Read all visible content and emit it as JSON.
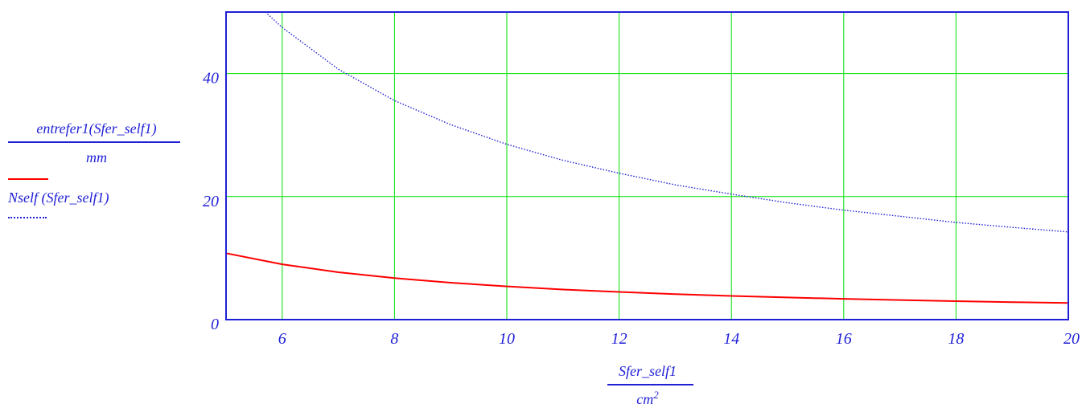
{
  "chart_data": {
    "type": "line",
    "xlabel_numerator": "Sfer_self1",
    "xlabel_denominator": "cm",
    "xlabel_denominator_exp": "2",
    "ylabel_numerator": "entrefer1(Sfer_self1)",
    "ylabel_denominator": "mm",
    "xlim": [
      5,
      20
    ],
    "ylim": [
      0,
      50
    ],
    "x_ticks": [
      6,
      8,
      10,
      12,
      14,
      16,
      18,
      20
    ],
    "x_tick_labels": [
      "6",
      "8",
      "10",
      "12",
      "14",
      "16",
      "18",
      "20"
    ],
    "y_ticks": [
      0,
      20,
      40
    ],
    "y_tick_labels": [
      "0",
      "20",
      "40"
    ],
    "x_axis_start_label": "",
    "grid": true,
    "legend_placement": "left",
    "series": [
      {
        "name": "entrefer1(Sfer_self1)",
        "style": "solid",
        "color": "#ff0000",
        "x": [
          5,
          6,
          7,
          8,
          9,
          10,
          11,
          12,
          13,
          14,
          15,
          16,
          17,
          18,
          19,
          20
        ],
        "y": [
          10.8,
          9.0,
          7.7,
          6.75,
          6.0,
          5.4,
          4.9,
          4.5,
          4.15,
          3.85,
          3.6,
          3.38,
          3.18,
          3.0,
          2.84,
          2.7
        ]
      },
      {
        "name": "Nself (Sfer_self1)",
        "style": "dotted",
        "color": "#1f1fd6",
        "x": [
          5.7,
          6,
          7,
          8,
          9,
          10,
          11,
          12,
          13,
          14,
          15,
          16,
          17,
          18,
          19,
          20
        ],
        "y": [
          50.0,
          47.5,
          40.7,
          35.6,
          31.7,
          28.5,
          25.9,
          23.8,
          21.9,
          20.4,
          19.0,
          17.8,
          16.8,
          15.8,
          15.0,
          14.25
        ]
      }
    ]
  },
  "colors": {
    "axis": "#1f1fd6",
    "grid": "#00e000",
    "text": "#1f1fd6"
  }
}
